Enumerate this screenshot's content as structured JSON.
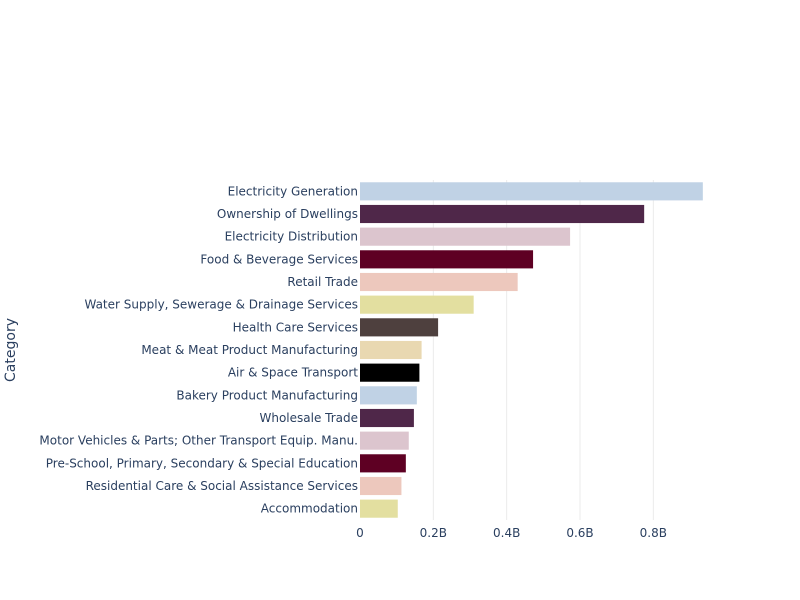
{
  "chart_data": {
    "type": "bar",
    "orientation": "horizontal",
    "title": "",
    "xlabel": "",
    "ylabel": "Category",
    "xlim": [
      0,
      0.96
    ],
    "x_unit_suffix": "B",
    "x_ticks": [
      {
        "value": 0,
        "label": "0"
      },
      {
        "value": 0.2,
        "label": "0.2B"
      },
      {
        "value": 0.4,
        "label": "0.4B"
      },
      {
        "value": 0.6,
        "label": "0.6B"
      },
      {
        "value": 0.8,
        "label": "0.8B"
      }
    ],
    "grid": true,
    "legend": "none",
    "categories": [
      "Electricity Generation",
      "Ownership of Dwellings",
      "Electricity Distribution",
      "Food & Beverage Services",
      "Retail Trade",
      "Water Supply, Sewerage & Drainage Services",
      "Health Care Services",
      "Meat & Meat Product Manufacturing",
      "Air & Space Transport",
      "Bakery Product Manufacturing",
      "Wholesale Trade",
      "Motor Vehicles & Parts; Other Transport Equip. Manu.",
      "Pre-School, Primary, Secondary & Special Education",
      "Residential Care & Social Assistance Services",
      "Accommodation"
    ],
    "values": [
      0.935,
      0.775,
      0.573,
      0.472,
      0.43,
      0.31,
      0.213,
      0.168,
      0.162,
      0.155,
      0.147,
      0.133,
      0.125,
      0.113,
      0.103
    ],
    "colors": [
      "#c0d2e5",
      "#4f2749",
      "#dcc5ce",
      "#5e0023",
      "#edc8bd",
      "#e3dfa0",
      "#4e403e",
      "#e9d8b1",
      "#000000",
      "#c0d2e5",
      "#4f2749",
      "#dcc5ce",
      "#5e0023",
      "#edc8bd",
      "#e3dfa0"
    ]
  }
}
